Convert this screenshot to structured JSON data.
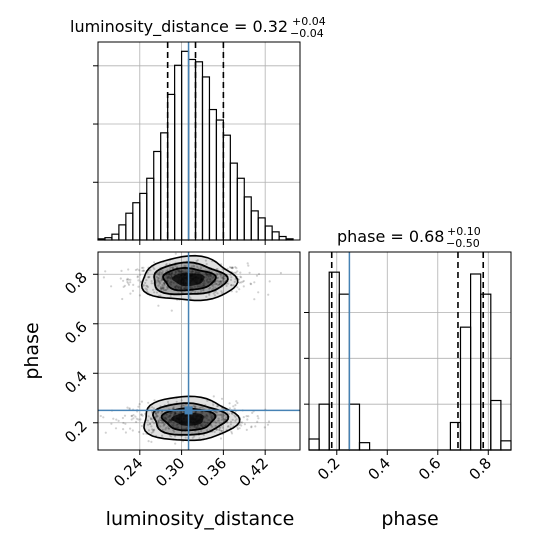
{
  "chart_data": [
    {
      "type": "histogram",
      "panel": "luminosity_distance marginal",
      "title": {
        "prefix": "luminosity_distance = 0.32",
        "upper": "+0.04",
        "lower": "−0.04"
      },
      "bin_edges": [
        0.18,
        0.19,
        0.2,
        0.21,
        0.22,
        0.23,
        0.24,
        0.25,
        0.26,
        0.27,
        0.28,
        0.29,
        0.3,
        0.31,
        0.32,
        0.33,
        0.34,
        0.35,
        0.36,
        0.37,
        0.38,
        0.39,
        0.4,
        0.41,
        0.42,
        0.43,
        0.44,
        0.45,
        0.46,
        0.47
      ],
      "counts": [
        0.2,
        0.4,
        1.0,
        2.6,
        4.6,
        6.4,
        8.0,
        10.6,
        15.2,
        18.4,
        25.0,
        30.0,
        32.4,
        31.0,
        30.6,
        28.0,
        22.4,
        20.6,
        18.0,
        13.2,
        10.6,
        7.4,
        5.0,
        3.8,
        2.4,
        1.4,
        0.6,
        0.2,
        0.0
      ],
      "quantile_lines": [
        0.28,
        0.32,
        0.36
      ],
      "truth": 0.31,
      "xlim": [
        0.18,
        0.47
      ],
      "grid": true
    },
    {
      "type": "histogram",
      "panel": "phase marginal",
      "title": {
        "prefix": "phase = 0.68",
        "upper": "+0.10",
        "lower": "−0.50"
      },
      "bin_edges": [
        0.09,
        0.13,
        0.17,
        0.21,
        0.25,
        0.29,
        0.33,
        0.37,
        0.41,
        0.45,
        0.49,
        0.53,
        0.57,
        0.61,
        0.65,
        0.69,
        0.73,
        0.77,
        0.81,
        0.85,
        0.89
      ],
      "counts": [
        0.6,
        2.5,
        9.7,
        8.5,
        2.5,
        0.4,
        0,
        0,
        0,
        0,
        0,
        0,
        0,
        0,
        1.5,
        6.7,
        9.6,
        8.5,
        2.7,
        0.5
      ],
      "quantile_lines": [
        0.18,
        0.68,
        0.78
      ],
      "truth": 0.25,
      "xlim": [
        0.09,
        0.89
      ],
      "xticks": [
        "0.2",
        "0.4",
        "0.6",
        "0.8"
      ],
      "xlabel": "phase",
      "grid": true
    },
    {
      "type": "scatter",
      "panel": "joint distribution",
      "description_modes": [
        {
          "center": [
            0.31,
            0.78
          ],
          "spread": [
            0.04,
            0.035
          ]
        },
        {
          "center": [
            0.31,
            0.215
          ],
          "spread": [
            0.04,
            0.035
          ]
        }
      ],
      "truth": [
        0.31,
        0.25
      ],
      "xlim": [
        0.18,
        0.47
      ],
      "ylim": [
        0.09,
        0.89
      ],
      "xticks": [
        "0.24",
        "0.30",
        "0.36",
        "0.42"
      ],
      "yticks": [
        "0.2",
        "0.4",
        "0.6",
        "0.8"
      ],
      "xlabel": "luminosity_distance",
      "ylabel": "phase",
      "grid": true
    }
  ],
  "colors": {
    "truth": "#4682b4",
    "hist": "#000000",
    "grid": "#b0b0b0",
    "points": "#000000",
    "contour_fill": "#000000"
  }
}
